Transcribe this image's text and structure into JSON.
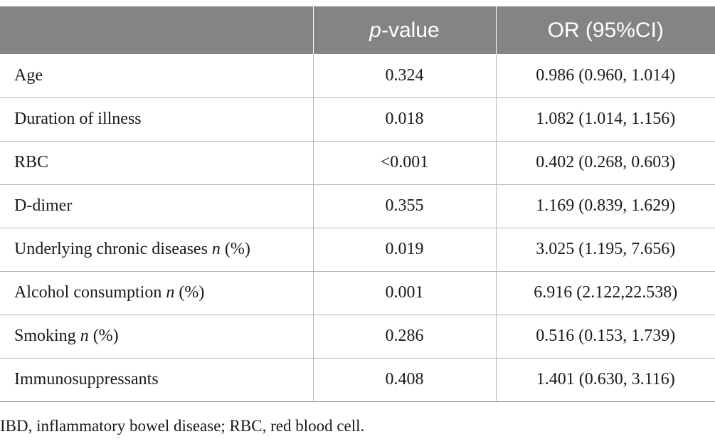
{
  "table": {
    "headers": [
      {
        "prefix": "",
        "italic": "",
        "suffix": ""
      },
      {
        "prefix": "",
        "italic": "p",
        "suffix": "-value"
      },
      {
        "prefix": "OR (95%CI)",
        "italic": "",
        "suffix": ""
      }
    ],
    "rows": [
      {
        "label": "Age",
        "label_italic": "",
        "label_suffix": "",
        "p_value": "0.324",
        "or_ci": "0.986 (0.960, 1.014)"
      },
      {
        "label": "Duration of illness",
        "label_italic": "",
        "label_suffix": "",
        "p_value": "0.018",
        "or_ci": "1.082 (1.014, 1.156)"
      },
      {
        "label": "RBC",
        "label_italic": "",
        "label_suffix": "",
        "p_value": "<0.001",
        "or_ci": "0.402 (0.268, 0.603)"
      },
      {
        "label": "D-dimer",
        "label_italic": "",
        "label_suffix": "",
        "p_value": "0.355",
        "or_ci": "1.169 (0.839, 1.629)"
      },
      {
        "label": "Underlying chronic diseases ",
        "label_italic": "n",
        "label_suffix": " (%)",
        "p_value": "0.019",
        "or_ci": "3.025 (1.195, 7.656)"
      },
      {
        "label": "Alcohol consumption ",
        "label_italic": "n",
        "label_suffix": " (%)",
        "p_value": "0.001",
        "or_ci": "6.916 (2.122,22.538)"
      },
      {
        "label": "Smoking ",
        "label_italic": "n",
        "label_suffix": " (%)",
        "p_value": "0.286",
        "or_ci": "0.516 (0.153, 1.739)"
      },
      {
        "label": "Immunosuppressants",
        "label_italic": "",
        "label_suffix": "",
        "p_value": "0.408",
        "or_ci": "1.401 (0.630, 3.116)"
      }
    ]
  },
  "footnote": "IBD, inflammatory bowel disease; RBC, red blood cell.",
  "colors": {
    "header_bg": "#848484",
    "header_text": "#ffffff",
    "grid": "#b8b8b8",
    "text": "#1a1a1a"
  }
}
